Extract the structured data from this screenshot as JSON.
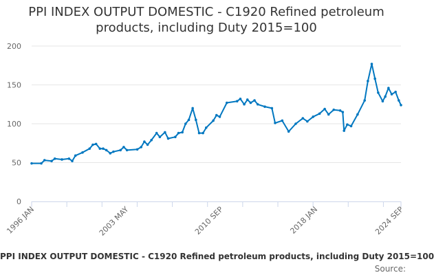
{
  "chart_data": {
    "type": "line",
    "title_line1": "PPI INDEX OUTPUT DOMESTIC - C1920 Refined petroleum",
    "title_line2": "products, including Duty 2015=100",
    "xlabel": "",
    "ylabel": "",
    "xlim": [
      1996.0,
      2024.67
    ],
    "ylim": [
      0,
      200
    ],
    "yticks": [
      0,
      50,
      100,
      150,
      200
    ],
    "xticks": [
      {
        "label": "1996 JAN",
        "x": 1996.0
      },
      {
        "label": "2003 MAY",
        "x": 2003.33
      },
      {
        "label": "2010 SEP",
        "x": 2010.67
      },
      {
        "label": "2018 JAN",
        "x": 2018.0
      },
      {
        "label": "2024 SEP",
        "x": 2024.67
      }
    ],
    "grid": true,
    "color": "#0077c0",
    "series": [
      {
        "name": "PPI INDEX OUTPUT DOMESTIC - C1920 Refined petroleum products, including Duty 2015=100",
        "x": [
          1996.0,
          1996.75,
          1997.0,
          1997.55,
          1997.8,
          1998.35,
          1998.9,
          1999.15,
          1999.4,
          1999.95,
          2000.5,
          2000.75,
          2001.0,
          2001.3,
          2001.55,
          2001.8,
          2002.1,
          2002.35,
          2002.9,
          2003.15,
          2003.4,
          2004.2,
          2004.5,
          2004.75,
          2005.0,
          2005.3,
          2005.7,
          2005.95,
          2006.35,
          2006.6,
          2007.15,
          2007.4,
          2007.7,
          2007.95,
          2008.2,
          2008.5,
          2008.75,
          2009.0,
          2009.3,
          2009.55,
          2010.1,
          2010.35,
          2010.6,
          2011.15,
          2011.95,
          2012.2,
          2012.5,
          2012.75,
          2013.0,
          2013.3,
          2013.55,
          2014.1,
          2014.65,
          2014.9,
          2015.45,
          2015.95,
          2016.5,
          2017.05,
          2017.4,
          2017.85,
          2018.35,
          2018.75,
          2019.05,
          2019.45,
          2019.95,
          2020.15,
          2020.25,
          2020.5,
          2020.8,
          2021.3,
          2021.85,
          2022.1,
          2022.4,
          2022.65,
          2022.9,
          2023.25,
          2023.45,
          2023.7,
          2023.95,
          2024.25,
          2024.5,
          2024.67
        ],
        "values": [
          49,
          49,
          53,
          52,
          55,
          54,
          55,
          52,
          59,
          63,
          68,
          73,
          74,
          68,
          68,
          66,
          62,
          64,
          66,
          70,
          66,
          67,
          70,
          77,
          73,
          79,
          88,
          83,
          89,
          81,
          83,
          88,
          89,
          100,
          105,
          120,
          105,
          88,
          88,
          95,
          104,
          111,
          109,
          127,
          129,
          132,
          125,
          131,
          127,
          130,
          125,
          122,
          120,
          101,
          104,
          90,
          100,
          107,
          103,
          109,
          113,
          119,
          112,
          118,
          117,
          115,
          91,
          99,
          97,
          112,
          130,
          155,
          177,
          158,
          140,
          129,
          135,
          146,
          138,
          141,
          130,
          124
        ]
      }
    ]
  },
  "caption": "PPI INDEX OUTPUT DOMESTIC - C1920 Refined petroleum products, including Duty 2015=100",
  "source_label": "Source:"
}
